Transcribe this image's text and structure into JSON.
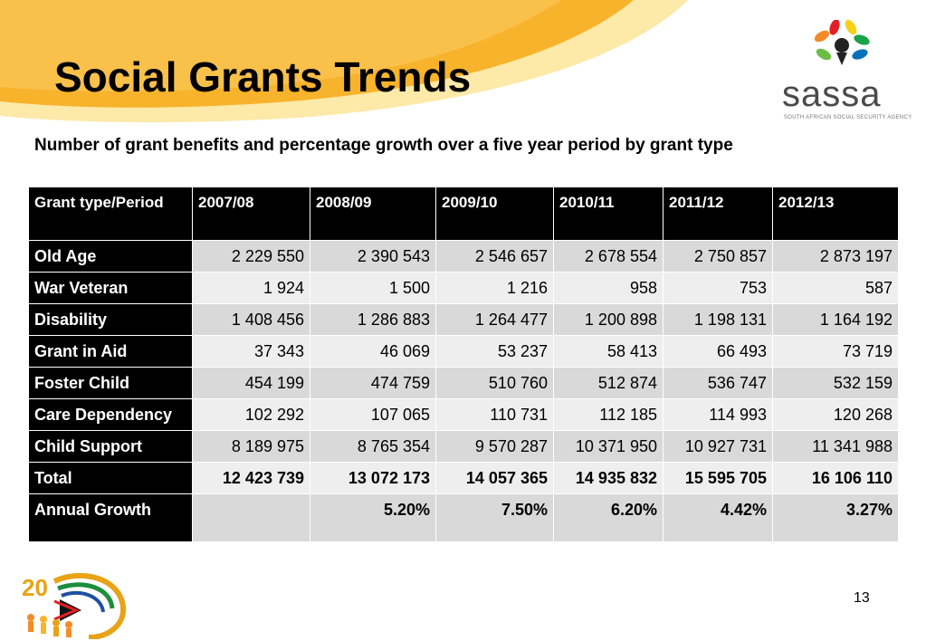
{
  "slide": {
    "title": "Social Grants Trends",
    "subtitle": "Number of grant benefits and percentage growth over a five year period by grant type",
    "page_number": "13"
  },
  "logo": {
    "wordmark": "sassa",
    "tagline": "SOUTH AFRICAN SOCIAL SECURITY AGENCY"
  },
  "colors": {
    "swoosh_orange": "#f7b32b",
    "swoosh_light": "#fde9a8",
    "header_bg": "#000000",
    "row_dark": "#d9d9d9",
    "row_light": "#eeeeee"
  },
  "table": {
    "header": [
      "Grant type/Period",
      "2007/08",
      "2008/09",
      "2009/10",
      "2010/11",
      "2011/12",
      "2012/13"
    ],
    "rows": [
      {
        "label": "Old Age",
        "values": [
          "2 229 550",
          "2 390 543",
          "2 546 657",
          "2 678 554",
          "2 750 857",
          "2 873 197"
        ]
      },
      {
        "label": "War Veteran",
        "values": [
          "1 924",
          "1 500",
          "1 216",
          "958",
          "753",
          "587"
        ]
      },
      {
        "label": "Disability",
        "values": [
          "1 408 456",
          "1 286 883",
          "1 264 477",
          "1 200 898",
          "1 198 131",
          "1 164 192"
        ]
      },
      {
        "label": "Grant in Aid",
        "values": [
          "37 343",
          "46 069",
          "53 237",
          "58 413",
          "66 493",
          "73 719"
        ]
      },
      {
        "label": "Foster Child",
        "values": [
          "454 199",
          "474 759",
          "510 760",
          "512 874",
          "536 747",
          "532 159"
        ]
      },
      {
        "label": "Care Dependency",
        "values": [
          "102 292",
          "107 065",
          "110 731",
          "112 185",
          "114 993",
          "120 268"
        ]
      },
      {
        "label": "Child Support",
        "values": [
          "8 189 975",
          "8 765 354",
          "9 570 287",
          "10 371 950",
          "10 927 731",
          "11 341 988"
        ]
      },
      {
        "label": "Total",
        "values": [
          "12 423 739",
          "13 072 173",
          "14 057 365",
          "14 935 832",
          "15 595 705",
          "16 106 110"
        ]
      },
      {
        "label": "Annual Growth",
        "values": [
          "",
          "5.20%",
          "7.50%",
          "6.20%",
          "4.42%",
          "3.27%"
        ]
      }
    ]
  }
}
